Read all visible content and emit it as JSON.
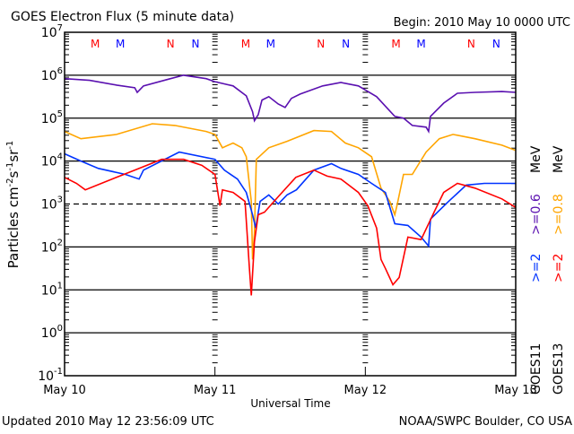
{
  "chart_data": {
    "type": "line",
    "title": "GOES Electron Flux (5 minute data)",
    "begin_label": "Begin: 2010 May 10 0000 UTC",
    "xlabel": "Universal Time",
    "ylabel": "Particles cm-2s-1sr-1",
    "ylabel_parts": {
      "base": "Particles cm",
      "e1": "-2",
      "s": "s",
      "e2": "-1",
      "sr": "sr",
      "e3": "-1"
    },
    "yscale": "log",
    "ylim_log10": [
      -1,
      7
    ],
    "y_ticks": [
      {
        "b": "10",
        "e": "7",
        "v": 7
      },
      {
        "b": "10",
        "e": "6",
        "v": 6
      },
      {
        "b": "10",
        "e": "5",
        "v": 5
      },
      {
        "b": "10",
        "e": "4",
        "v": 4
      },
      {
        "b": "10",
        "e": "3",
        "v": 3
      },
      {
        "b": "10",
        "e": "2",
        "v": 2
      },
      {
        "b": "10",
        "e": "1",
        "v": 1
      },
      {
        "b": "10",
        "e": "0",
        "v": 0
      },
      {
        "b": "10",
        "e": "-1",
        "v": -1
      }
    ],
    "xlim_hours": [
      0,
      72
    ],
    "x_ticks": [
      {
        "label": "May 10",
        "h": 0
      },
      {
        "label": "May 11",
        "h": 24
      },
      {
        "label": "May 12",
        "h": 48
      },
      {
        "label": "May 13",
        "h": 72
      }
    ],
    "threshold_log10": 3,
    "markers": [
      {
        "t": "M",
        "h": 4.9,
        "color": "#ff0000"
      },
      {
        "t": "M",
        "h": 8.9,
        "color": "#0000ff"
      },
      {
        "t": "N",
        "h": 16.9,
        "color": "#ff0000"
      },
      {
        "t": "N",
        "h": 20.9,
        "color": "#0000ff"
      },
      {
        "t": "M",
        "h": 28.9,
        "color": "#ff0000"
      },
      {
        "t": "M",
        "h": 32.9,
        "color": "#0000ff"
      },
      {
        "t": "N",
        "h": 40.9,
        "color": "#ff0000"
      },
      {
        "t": "N",
        "h": 44.9,
        "color": "#0000ff"
      },
      {
        "t": "M",
        "h": 52.9,
        "color": "#ff0000"
      },
      {
        "t": "M",
        "h": 56.9,
        "color": "#0000ff"
      },
      {
        "t": "N",
        "h": 64.9,
        "color": "#ff0000"
      },
      {
        "t": "N",
        "h": 68.9,
        "color": "#0000ff"
      }
    ],
    "legend": {
      "goes11": {
        "label": "GOES11",
        "e06": ">=0.6",
        "e2": ">=2",
        "mev": "MeV"
      },
      "goes13": {
        "label": "GOES13",
        "e08": ">=0.8",
        "e2": ">=2",
        "mev": "MeV"
      }
    },
    "series": [
      {
        "name": "GOES11 >=0.6 MeV",
        "color": "#5a10b0",
        "points": [
          [
            0,
            5.92
          ],
          [
            4,
            5.88
          ],
          [
            8.3,
            5.77
          ],
          [
            11.2,
            5.71
          ],
          [
            11.6,
            5.6
          ],
          [
            12.6,
            5.75
          ],
          [
            16.9,
            5.92
          ],
          [
            19,
            6.0
          ],
          [
            22.6,
            5.92
          ],
          [
            24,
            5.85
          ],
          [
            26.9,
            5.75
          ],
          [
            29,
            5.52
          ],
          [
            30,
            5.15
          ],
          [
            30.3,
            4.94
          ],
          [
            30.9,
            5.08
          ],
          [
            31.5,
            5.42
          ],
          [
            32.6,
            5.5
          ],
          [
            34.1,
            5.33
          ],
          [
            35.2,
            5.25
          ],
          [
            36.2,
            5.46
          ],
          [
            37.6,
            5.56
          ],
          [
            41.2,
            5.75
          ],
          [
            44.1,
            5.83
          ],
          [
            46.9,
            5.75
          ],
          [
            49.8,
            5.5
          ],
          [
            52.7,
            5.04
          ],
          [
            54.1,
            5.0
          ],
          [
            55.5,
            4.83
          ],
          [
            57.7,
            4.79
          ],
          [
            58.1,
            4.69
          ],
          [
            58.4,
            5.04
          ],
          [
            60.5,
            5.35
          ],
          [
            62.7,
            5.58
          ],
          [
            65.5,
            5.6
          ],
          [
            69.8,
            5.62
          ],
          [
            72,
            5.6
          ]
        ]
      },
      {
        "name": "GOES13 >=0.8 MeV",
        "color": "#ffa500",
        "points": [
          [
            0,
            4.69
          ],
          [
            2.6,
            4.52
          ],
          [
            8.3,
            4.62
          ],
          [
            14,
            4.87
          ],
          [
            17.6,
            4.83
          ],
          [
            22.6,
            4.69
          ],
          [
            24,
            4.62
          ],
          [
            25.2,
            4.31
          ],
          [
            26.9,
            4.42
          ],
          [
            28.3,
            4.31
          ],
          [
            29,
            4.1
          ],
          [
            29.8,
            3.06
          ],
          [
            30,
            1.71
          ],
          [
            30.3,
            2.33
          ],
          [
            30.6,
            4.04
          ],
          [
            32.6,
            4.31
          ],
          [
            35.5,
            4.46
          ],
          [
            39.8,
            4.71
          ],
          [
            42.6,
            4.69
          ],
          [
            44.8,
            4.42
          ],
          [
            46.9,
            4.31
          ],
          [
            49,
            4.1
          ],
          [
            50.5,
            3.37
          ],
          [
            51.9,
            3.06
          ],
          [
            52.7,
            2.75
          ],
          [
            53.1,
            3.0
          ],
          [
            54.1,
            3.69
          ],
          [
            55.5,
            3.69
          ],
          [
            57.7,
            4.21
          ],
          [
            59.8,
            4.52
          ],
          [
            62,
            4.62
          ],
          [
            65.5,
            4.52
          ],
          [
            69.8,
            4.37
          ],
          [
            72,
            4.25
          ]
        ]
      },
      {
        "name": "GOES11 >=2 MeV",
        "color": "#0033ff",
        "points": [
          [
            0,
            4.17
          ],
          [
            2.6,
            4.0
          ],
          [
            5.4,
            3.83
          ],
          [
            9.7,
            3.69
          ],
          [
            11.9,
            3.58
          ],
          [
            12.6,
            3.79
          ],
          [
            18.3,
            4.21
          ],
          [
            24,
            4.04
          ],
          [
            25.5,
            3.79
          ],
          [
            27.6,
            3.58
          ],
          [
            29,
            3.27
          ],
          [
            30,
            2.75
          ],
          [
            30.5,
            2.44
          ],
          [
            31.2,
            3.06
          ],
          [
            32.6,
            3.21
          ],
          [
            34.1,
            3.0
          ],
          [
            35.5,
            3.21
          ],
          [
            37,
            3.33
          ],
          [
            39.8,
            3.79
          ],
          [
            42.6,
            3.94
          ],
          [
            44.1,
            3.83
          ],
          [
            46.9,
            3.69
          ],
          [
            49,
            3.48
          ],
          [
            51.2,
            3.27
          ],
          [
            52.7,
            2.54
          ],
          [
            54.8,
            2.5
          ],
          [
            56.9,
            2.23
          ],
          [
            58.1,
            2.02
          ],
          [
            58.4,
            2.65
          ],
          [
            59.8,
            2.85
          ],
          [
            61.3,
            3.06
          ],
          [
            64.1,
            3.44
          ],
          [
            67,
            3.48
          ],
          [
            72,
            3.48
          ]
        ]
      },
      {
        "name": "GOES13 >=2 MeV",
        "color": "#ff0000",
        "points": [
          [
            0,
            3.62
          ],
          [
            1.9,
            3.48
          ],
          [
            3.3,
            3.33
          ],
          [
            6.9,
            3.54
          ],
          [
            11.2,
            3.79
          ],
          [
            15.5,
            4.04
          ],
          [
            19,
            4.04
          ],
          [
            21.9,
            3.9
          ],
          [
            24,
            3.69
          ],
          [
            24.8,
            2.96
          ],
          [
            25.2,
            3.33
          ],
          [
            26.9,
            3.27
          ],
          [
            28.8,
            3.06
          ],
          [
            29.5,
            1.5
          ],
          [
            29.8,
            0.87
          ],
          [
            30.3,
            2.12
          ],
          [
            30.9,
            2.75
          ],
          [
            31.9,
            2.81
          ],
          [
            34.1,
            3.17
          ],
          [
            36.9,
            3.62
          ],
          [
            39.8,
            3.79
          ],
          [
            41.9,
            3.65
          ],
          [
            44.1,
            3.58
          ],
          [
            46.9,
            3.27
          ],
          [
            48.4,
            2.96
          ],
          [
            49.8,
            2.44
          ],
          [
            50.5,
            1.71
          ],
          [
            51.2,
            1.5
          ],
          [
            52.4,
            1.12
          ],
          [
            53.4,
            1.29
          ],
          [
            54.8,
            2.23
          ],
          [
            56.9,
            2.17
          ],
          [
            59.1,
            2.85
          ],
          [
            60.5,
            3.27
          ],
          [
            62.7,
            3.48
          ],
          [
            65.5,
            3.37
          ],
          [
            69.8,
            3.12
          ],
          [
            72,
            2.92
          ]
        ]
      }
    ]
  },
  "footer": {
    "updated": "Updated 2010 May 12 23:56:09 UTC",
    "source": "NOAA/SWPC Boulder, CO USA"
  }
}
